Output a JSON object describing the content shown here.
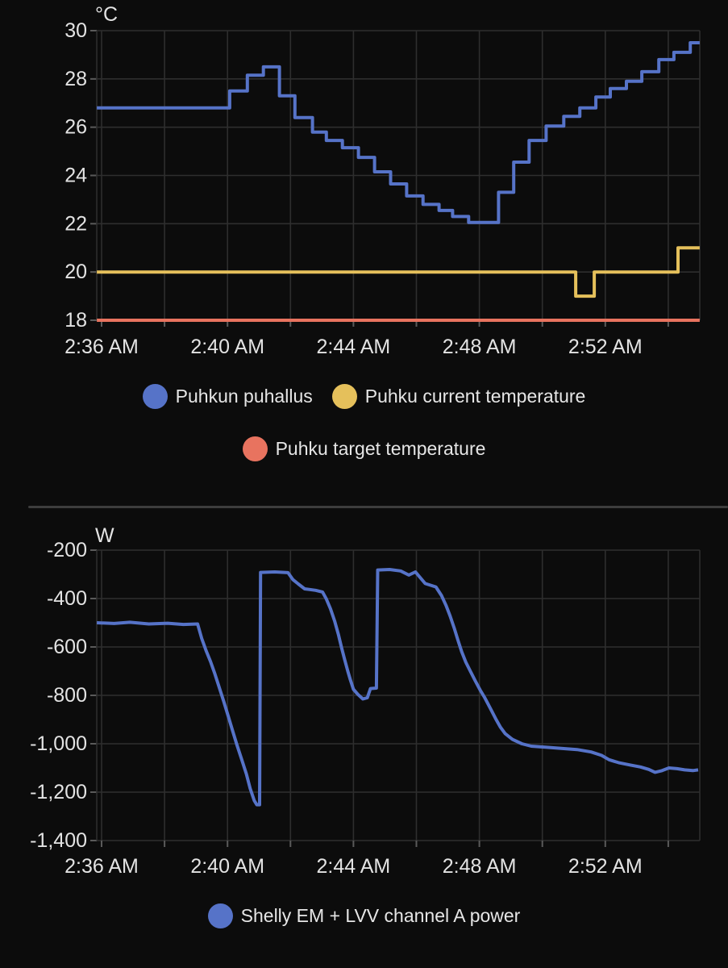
{
  "page": {
    "colors": {
      "background": "#0c0c0c",
      "grid": "#2e2e2e",
      "axis_tick": "#5a5a5a",
      "axis_text": "#e3e3e3",
      "legend_text": "#e6e6e6",
      "divider": "#3d3d3d",
      "series_blue": "#5673c8",
      "series_yellow": "#e5c05b",
      "series_red": "#e8735f"
    }
  },
  "chart_data": [
    {
      "id": "temperature",
      "type": "line",
      "title": "",
      "unit": "°C",
      "x_axis": {
        "tick_labels": [
          {
            "t": 0,
            "label": "2:36 AM"
          },
          {
            "t": 4,
            "label": "2:40 AM"
          },
          {
            "t": 8,
            "label": "2:44 AM"
          },
          {
            "t": 12,
            "label": "2:48 AM"
          },
          {
            "t": 16,
            "label": "2:52 AM"
          }
        ],
        "gridline_minutes": [
          0,
          2,
          4,
          6,
          8,
          10,
          12,
          14,
          16,
          18
        ],
        "range_minutes": [
          -0.15,
          19.0
        ],
        "start_time": "2:36 AM"
      },
      "y_axis": {
        "range": [
          18,
          30
        ],
        "ticks": [
          {
            "v": 18,
            "label": "18"
          },
          {
            "v": 20,
            "label": "20"
          },
          {
            "v": 22,
            "label": "22"
          },
          {
            "v": 24,
            "label": "24"
          },
          {
            "v": 26,
            "label": "26"
          },
          {
            "v": 28,
            "label": "28"
          },
          {
            "v": 30,
            "label": "30"
          }
        ]
      },
      "series": [
        {
          "name": "Puhkun puhallus",
          "color": "#5673c8",
          "step": true,
          "points": [
            [
              -0.15,
              26.8
            ],
            [
              4.07,
              27.5
            ],
            [
              4.63,
              28.15
            ],
            [
              5.14,
              28.5
            ],
            [
              5.65,
              27.3
            ],
            [
              6.14,
              26.4
            ],
            [
              6.7,
              25.8
            ],
            [
              7.14,
              25.45
            ],
            [
              7.65,
              25.15
            ],
            [
              8.16,
              24.75
            ],
            [
              8.67,
              24.15
            ],
            [
              9.18,
              23.65
            ],
            [
              9.69,
              23.15
            ],
            [
              10.21,
              22.8
            ],
            [
              10.72,
              22.55
            ],
            [
              11.15,
              22.3
            ],
            [
              11.66,
              22.05
            ],
            [
              12.61,
              23.3
            ],
            [
              13.09,
              24.55
            ],
            [
              13.58,
              25.45
            ],
            [
              14.12,
              26.05
            ],
            [
              14.68,
              26.45
            ],
            [
              15.19,
              26.8
            ],
            [
              15.7,
              27.25
            ],
            [
              16.16,
              27.6
            ],
            [
              16.67,
              27.9
            ],
            [
              17.16,
              28.3
            ],
            [
              17.7,
              28.8
            ],
            [
              18.18,
              29.1
            ],
            [
              18.7,
              29.5
            ],
            [
              19.0,
              29.5
            ]
          ]
        },
        {
          "name": "Puhku current temperature",
          "color": "#e5c05b",
          "step": true,
          "points": [
            [
              -0.15,
              20
            ],
            [
              15.06,
              19
            ],
            [
              15.65,
              20
            ],
            [
              18.31,
              21
            ],
            [
              19.0,
              21
            ]
          ]
        },
        {
          "name": "Puhku target temperature",
          "color": "#e8735f",
          "step": true,
          "points": [
            [
              -0.15,
              18
            ],
            [
              19.0,
              18
            ]
          ]
        }
      ],
      "legend_rows": [
        [
          0,
          1
        ],
        [
          2
        ]
      ]
    },
    {
      "id": "power",
      "type": "line",
      "title": "",
      "unit": "W",
      "x_axis": {
        "tick_labels": [
          {
            "t": 0,
            "label": "2:36 AM"
          },
          {
            "t": 4,
            "label": "2:40 AM"
          },
          {
            "t": 8,
            "label": "2:44 AM"
          },
          {
            "t": 12,
            "label": "2:48 AM"
          },
          {
            "t": 16,
            "label": "2:52 AM"
          }
        ],
        "gridline_minutes": [
          0,
          2,
          4,
          6,
          8,
          10,
          12,
          14,
          16,
          18
        ],
        "range_minutes": [
          -0.15,
          19.0
        ],
        "start_time": "2:36 AM"
      },
      "y_axis": {
        "range": [
          -1400,
          -200
        ],
        "ticks": [
          {
            "v": -1400,
            "label": "-1,400"
          },
          {
            "v": -1200,
            "label": "-1,200"
          },
          {
            "v": -1000,
            "label": "-1,000"
          },
          {
            "v": -800,
            "label": "-800"
          },
          {
            "v": -600,
            "label": "-600"
          },
          {
            "v": -400,
            "label": "-400"
          },
          {
            "v": -200,
            "label": "-200"
          }
        ]
      },
      "series": [
        {
          "name": "Shelly EM + LVV channel A power",
          "color": "#5673c8",
          "step": false,
          "points": [
            [
              -0.15,
              -500
            ],
            [
              0.4,
              -503
            ],
            [
              0.9,
              -498
            ],
            [
              1.5,
              -505
            ],
            [
              2.1,
              -502
            ],
            [
              2.6,
              -507
            ],
            [
              3.05,
              -505
            ],
            [
              3.18,
              -565
            ],
            [
              3.32,
              -615
            ],
            [
              3.46,
              -660
            ],
            [
              3.6,
              -712
            ],
            [
              3.74,
              -768
            ],
            [
              3.88,
              -825
            ],
            [
              4.02,
              -885
            ],
            [
              4.16,
              -945
            ],
            [
              4.3,
              -1005
            ],
            [
              4.45,
              -1065
            ],
            [
              4.6,
              -1125
            ],
            [
              4.72,
              -1185
            ],
            [
              4.85,
              -1235
            ],
            [
              4.93,
              -1252
            ],
            [
              5.02,
              -1252
            ],
            [
              5.05,
              -292
            ],
            [
              5.5,
              -290
            ],
            [
              5.92,
              -293
            ],
            [
              6.08,
              -322
            ],
            [
              6.25,
              -340
            ],
            [
              6.45,
              -360
            ],
            [
              6.8,
              -366
            ],
            [
              7.02,
              -373
            ],
            [
              7.14,
              -402
            ],
            [
              7.27,
              -442
            ],
            [
              7.4,
              -492
            ],
            [
              7.52,
              -548
            ],
            [
              7.62,
              -602
            ],
            [
              7.72,
              -652
            ],
            [
              7.82,
              -700
            ],
            [
              7.9,
              -735
            ],
            [
              8.0,
              -775
            ],
            [
              8.14,
              -796
            ],
            [
              8.3,
              -815
            ],
            [
              8.44,
              -810
            ],
            [
              8.54,
              -772
            ],
            [
              8.73,
              -770
            ],
            [
              8.77,
              -282
            ],
            [
              9.15,
              -280
            ],
            [
              9.5,
              -286
            ],
            [
              9.76,
              -303
            ],
            [
              9.97,
              -290
            ],
            [
              10.28,
              -338
            ],
            [
              10.62,
              -352
            ],
            [
              10.8,
              -388
            ],
            [
              10.94,
              -428
            ],
            [
              11.07,
              -472
            ],
            [
              11.2,
              -522
            ],
            [
              11.32,
              -572
            ],
            [
              11.44,
              -620
            ],
            [
              11.57,
              -663
            ],
            [
              11.72,
              -702
            ],
            [
              11.87,
              -740
            ],
            [
              12.02,
              -777
            ],
            [
              12.16,
              -807
            ],
            [
              12.36,
              -857
            ],
            [
              12.52,
              -897
            ],
            [
              12.67,
              -932
            ],
            [
              12.82,
              -958
            ],
            [
              13.05,
              -982
            ],
            [
              13.35,
              -1000
            ],
            [
              13.65,
              -1010
            ],
            [
              14.1,
              -1014
            ],
            [
              14.6,
              -1019
            ],
            [
              15.1,
              -1024
            ],
            [
              15.55,
              -1034
            ],
            [
              15.88,
              -1048
            ],
            [
              16.12,
              -1066
            ],
            [
              16.42,
              -1078
            ],
            [
              16.8,
              -1088
            ],
            [
              17.12,
              -1096
            ],
            [
              17.38,
              -1106
            ],
            [
              17.58,
              -1118
            ],
            [
              17.78,
              -1112
            ],
            [
              18.02,
              -1100
            ],
            [
              18.28,
              -1103
            ],
            [
              18.52,
              -1108
            ],
            [
              18.78,
              -1111
            ],
            [
              18.95,
              -1108
            ]
          ]
        }
      ],
      "legend_rows": [
        [
          0
        ]
      ]
    }
  ]
}
